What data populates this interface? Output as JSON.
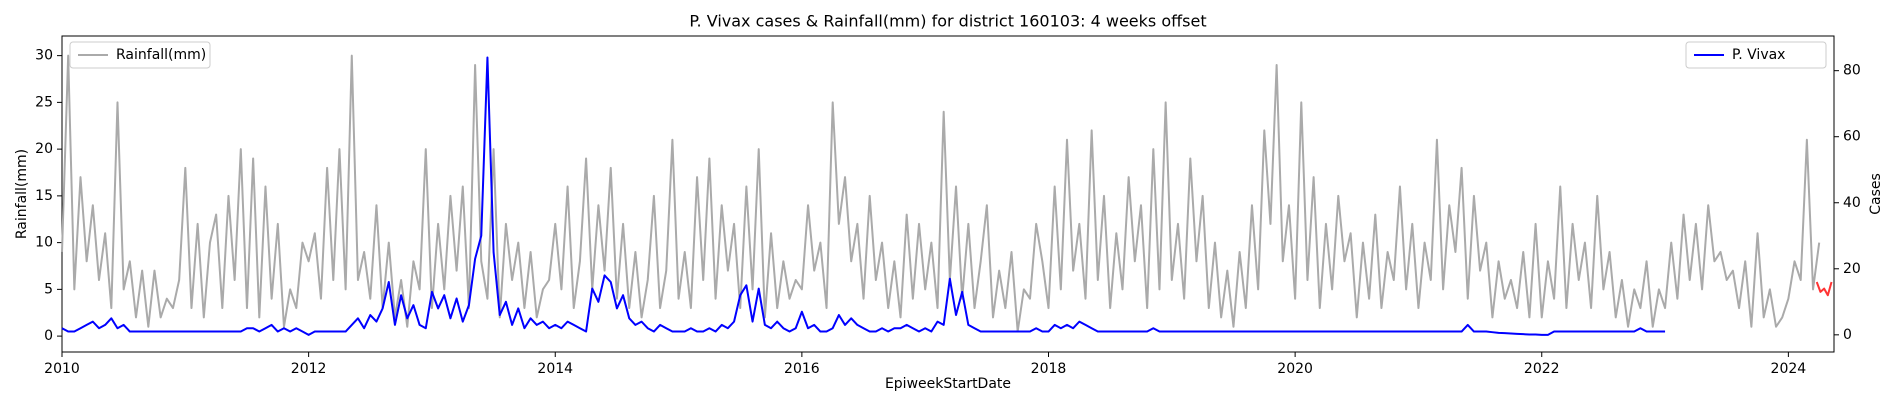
{
  "chart_data": {
    "type": "line",
    "title": "P. Vivax cases & Rainfall(mm) for district 160103: 4 weeks offset",
    "x_label": "EpiweekStartDate",
    "y_label": "Rainfall(mm)",
    "y2_label": "Cases",
    "xlim": [
      2010,
      2024.37
    ],
    "xticks": [
      2010,
      2012,
      2014,
      2016,
      2018,
      2020,
      2022,
      2024
    ],
    "ylim": [
      -1.7,
      32.1
    ],
    "yticks": [
      0,
      5,
      10,
      15,
      20,
      25,
      30
    ],
    "y2lim": [
      -5.2,
      90.5
    ],
    "y2ticks": [
      0,
      20,
      40,
      60,
      80
    ],
    "series": [
      {
        "name": "Rainfall(mm)",
        "color": "#aaaaaa",
        "legend": "upper left",
        "x": [
          2010,
          2010.05,
          2010.1,
          2010.15,
          2010.2,
          2010.25,
          2010.3,
          2010.35,
          2010.4,
          2010.45,
          2010.5,
          2010.55,
          2010.6,
          2010.65,
          2010.7,
          2010.75,
          2010.8,
          2010.85,
          2010.9,
          2010.95,
          2011,
          2011.05,
          2011.1,
          2011.15,
          2011.2,
          2011.25,
          2011.3,
          2011.35,
          2011.4,
          2011.45,
          2011.5,
          2011.55,
          2011.6,
          2011.65,
          2011.7,
          2011.75,
          2011.8,
          2011.85,
          2011.9,
          2011.95,
          2012,
          2012.05,
          2012.1,
          2012.15,
          2012.2,
          2012.25,
          2012.3,
          2012.35,
          2012.4,
          2012.45,
          2012.5,
          2012.55,
          2012.6,
          2012.65,
          2012.7,
          2012.75,
          2012.8,
          2012.85,
          2012.9,
          2012.95,
          2013,
          2013.05,
          2013.1,
          2013.15,
          2013.2,
          2013.25,
          2013.3,
          2013.35,
          2013.4,
          2013.45,
          2013.5,
          2013.55,
          2013.6,
          2013.65,
          2013.7,
          2013.75,
          2013.8,
          2013.85,
          2013.9,
          2013.95,
          2014,
          2014.05,
          2014.1,
          2014.15,
          2014.2,
          2014.25,
          2014.3,
          2014.35,
          2014.4,
          2014.45,
          2014.5,
          2014.55,
          2014.6,
          2014.65,
          2014.7,
          2014.75,
          2014.8,
          2014.85,
          2014.9,
          2014.95,
          2015,
          2015.05,
          2015.1,
          2015.15,
          2015.2,
          2015.25,
          2015.3,
          2015.35,
          2015.4,
          2015.45,
          2015.5,
          2015.55,
          2015.6,
          2015.65,
          2015.7,
          2015.75,
          2015.8,
          2015.85,
          2015.9,
          2015.95,
          2016,
          2016.05,
          2016.1,
          2016.15,
          2016.2,
          2016.25,
          2016.3,
          2016.35,
          2016.4,
          2016.45,
          2016.5,
          2016.55,
          2016.6,
          2016.65,
          2016.7,
          2016.75,
          2016.8,
          2016.85,
          2016.9,
          2016.95,
          2017,
          2017.05,
          2017.1,
          2017.15,
          2017.2,
          2017.25,
          2017.3,
          2017.35,
          2017.4,
          2017.45,
          2017.5,
          2017.55,
          2017.6,
          2017.65,
          2017.7,
          2017.75,
          2017.8,
          2017.85,
          2017.9,
          2017.95,
          2018,
          2018.05,
          2018.1,
          2018.15,
          2018.2,
          2018.25,
          2018.3,
          2018.35,
          2018.4,
          2018.45,
          2018.5,
          2018.55,
          2018.6,
          2018.65,
          2018.7,
          2018.75,
          2018.8,
          2018.85,
          2018.9,
          2018.95,
          2019,
          2019.05,
          2019.1,
          2019.15,
          2019.2,
          2019.25,
          2019.3,
          2019.35,
          2019.4,
          2019.45,
          2019.5,
          2019.55,
          2019.6,
          2019.65,
          2019.7,
          2019.75,
          2019.8,
          2019.85,
          2019.9,
          2019.95,
          2020,
          2020.05,
          2020.1,
          2020.15,
          2020.2,
          2020.25,
          2020.3,
          2020.35,
          2020.4,
          2020.45,
          2020.5,
          2020.55,
          2020.6,
          2020.65,
          2020.7,
          2020.75,
          2020.8,
          2020.85,
          2020.9,
          2020.95,
          2021,
          2021.05,
          2021.1,
          2021.15,
          2021.2,
          2021.25,
          2021.3,
          2021.35,
          2021.4,
          2021.45,
          2021.5,
          2021.55,
          2021.6,
          2021.65,
          2021.7,
          2021.75,
          2021.8,
          2021.85,
          2021.9,
          2021.95,
          2022,
          2022.05,
          2022.1,
          2022.15,
          2022.2,
          2022.25,
          2022.3,
          2022.35,
          2022.4,
          2022.45,
          2022.5,
          2022.55,
          2022.6,
          2022.65,
          2022.7,
          2022.75,
          2022.8,
          2022.85,
          2022.9,
          2022.95,
          2023,
          2023.05,
          2023.1,
          2023.15,
          2023.2,
          2023.25,
          2023.3,
          2023.35,
          2023.4,
          2023.45,
          2023.5,
          2023.55,
          2023.6,
          2023.65,
          2023.7,
          2023.75,
          2023.8,
          2023.85,
          2023.9,
          2023.95,
          2024,
          2024.05,
          2024.1,
          2024.15,
          2024.2,
          2024.25
        ],
        "values": [
          9,
          30,
          5,
          17,
          8,
          14,
          6,
          11,
          3,
          25,
          5,
          8,
          2,
          7,
          1,
          7,
          2,
          4,
          3,
          6,
          18,
          3,
          12,
          2,
          10,
          13,
          3,
          15,
          6,
          20,
          3,
          19,
          2,
          16,
          4,
          12,
          1,
          5,
          3,
          10,
          8,
          11,
          4,
          18,
          6,
          20,
          5,
          30,
          6,
          9,
          4,
          14,
          3,
          10,
          2,
          6,
          1,
          8,
          5,
          20,
          3,
          12,
          5,
          15,
          7,
          16,
          3,
          29,
          8,
          4,
          20,
          2,
          12,
          6,
          10,
          3,
          9,
          2,
          5,
          6,
          12,
          5,
          16,
          3,
          8,
          19,
          5,
          14,
          7,
          18,
          4,
          12,
          3,
          9,
          2,
          6,
          15,
          3,
          7,
          21,
          4,
          9,
          3,
          17,
          6,
          19,
          4,
          14,
          7,
          12,
          3,
          16,
          5,
          20,
          2,
          11,
          3,
          8,
          4,
          6,
          5,
          14,
          7,
          10,
          3,
          25,
          12,
          17,
          8,
          12,
          4,
          15,
          6,
          10,
          3,
          8,
          2,
          13,
          4,
          12,
          5,
          10,
          3,
          24,
          6,
          16,
          4,
          12,
          3,
          8,
          14,
          2,
          7,
          3,
          9,
          0.5,
          5,
          4,
          12,
          8,
          3,
          16,
          5,
          21,
          7,
          12,
          4,
          22,
          6,
          15,
          3,
          11,
          5,
          17,
          8,
          14,
          3,
          20,
          5,
          25,
          6,
          12,
          4,
          19,
          8,
          15,
          3,
          10,
          2,
          7,
          1,
          9,
          3,
          14,
          5,
          22,
          12,
          29,
          8,
          14,
          4,
          25,
          6,
          17,
          3,
          12,
          5,
          15,
          8,
          11,
          2,
          10,
          4,
          13,
          3,
          9,
          6,
          16,
          5,
          12,
          3,
          10,
          6,
          21,
          5,
          14,
          9,
          18,
          4,
          15,
          7,
          10,
          2,
          8,
          4,
          6,
          3,
          9,
          2,
          12,
          2,
          8,
          4,
          16,
          3,
          12,
          6,
          10,
          3,
          15,
          5,
          9,
          2,
          6,
          1,
          5,
          3,
          8,
          1,
          5,
          3,
          10,
          4,
          13,
          6,
          12,
          5,
          14,
          8,
          9,
          6,
          7,
          3,
          8,
          1,
          11,
          2,
          5,
          1,
          2,
          4,
          8,
          6,
          21,
          5,
          10
        ]
      },
      {
        "name": "P. Vivax",
        "color": "#0000ff",
        "axis": "y2",
        "legend": "upper right",
        "x": [
          2010,
          2010.05,
          2010.1,
          2010.15,
          2010.2,
          2010.25,
          2010.3,
          2010.35,
          2010.4,
          2010.45,
          2010.5,
          2010.55,
          2010.6,
          2010.65,
          2010.7,
          2010.75,
          2010.8,
          2010.85,
          2010.9,
          2010.95,
          2011,
          2011.05,
          2011.1,
          2011.15,
          2011.2,
          2011.25,
          2011.3,
          2011.35,
          2011.4,
          2011.45,
          2011.5,
          2011.55,
          2011.6,
          2011.65,
          2011.7,
          2011.75,
          2011.8,
          2011.85,
          2011.9,
          2011.95,
          2012,
          2012.05,
          2012.1,
          2012.15,
          2012.2,
          2012.25,
          2012.3,
          2012.35,
          2012.4,
          2012.45,
          2012.5,
          2012.55,
          2012.6,
          2012.65,
          2012.7,
          2012.75,
          2012.8,
          2012.85,
          2012.9,
          2012.95,
          2013,
          2013.05,
          2013.1,
          2013.15,
          2013.2,
          2013.25,
          2013.3,
          2013.35,
          2013.4,
          2013.45,
          2013.5,
          2013.55,
          2013.6,
          2013.65,
          2013.7,
          2013.75,
          2013.8,
          2013.85,
          2013.9,
          2013.95,
          2014,
          2014.05,
          2014.1,
          2014.15,
          2014.2,
          2014.25,
          2014.3,
          2014.35,
          2014.4,
          2014.45,
          2014.5,
          2014.55,
          2014.6,
          2014.65,
          2014.7,
          2014.75,
          2014.8,
          2014.85,
          2014.9,
          2014.95,
          2015,
          2015.05,
          2015.1,
          2015.15,
          2015.2,
          2015.25,
          2015.3,
          2015.35,
          2015.4,
          2015.45,
          2015.5,
          2015.55,
          2015.6,
          2015.65,
          2015.7,
          2015.75,
          2015.8,
          2015.85,
          2015.9,
          2015.95,
          2016,
          2016.05,
          2016.1,
          2016.15,
          2016.2,
          2016.25,
          2016.3,
          2016.35,
          2016.4,
          2016.45,
          2016.5,
          2016.55,
          2016.6,
          2016.65,
          2016.7,
          2016.75,
          2016.8,
          2016.85,
          2016.9,
          2016.95,
          2017,
          2017.05,
          2017.1,
          2017.15,
          2017.2,
          2017.25,
          2017.3,
          2017.35,
          2017.4,
          2017.45,
          2017.5,
          2017.55,
          2017.6,
          2017.65,
          2017.7,
          2017.75,
          2017.8,
          2017.85,
          2017.9,
          2017.95,
          2018,
          2018.05,
          2018.1,
          2018.15,
          2018.2,
          2018.25,
          2018.3,
          2018.35,
          2018.4,
          2018.45,
          2018.5,
          2018.55,
          2018.6,
          2018.65,
          2018.7,
          2018.75,
          2018.8,
          2018.85,
          2018.9,
          2018.95,
          2019,
          2019.05,
          2019.1,
          2019.15,
          2019.2,
          2019.25,
          2019.3,
          2019.35,
          2019.4,
          2019.45,
          2019.5,
          2019.55,
          2019.6,
          2019.65,
          2019.7,
          2019.75,
          2019.8,
          2019.85,
          2019.9,
          2019.95,
          2020,
          2020.05,
          2020.1,
          2020.15,
          2020.2,
          2020.25,
          2020.3,
          2020.35,
          2020.4,
          2020.45,
          2020.5,
          2020.55,
          2020.6,
          2020.65,
          2020.7,
          2020.75,
          2020.8,
          2020.85,
          2020.9,
          2020.95,
          2021,
          2021.05,
          2021.1,
          2021.15,
          2021.2,
          2021.25,
          2021.3,
          2021.35,
          2021.4,
          2021.45,
          2021.5,
          2021.55,
          2021.6,
          2021.65,
          2021.7,
          2021.75,
          2021.8,
          2021.85,
          2021.9,
          2021.95,
          2022,
          2022.05,
          2022.1,
          2022.15,
          2022.2,
          2022.25,
          2022.3,
          2022.35,
          2022.4,
          2022.45,
          2022.5,
          2022.55,
          2022.6,
          2022.65,
          2022.7,
          2022.75,
          2022.8,
          2022.85,
          2022.9,
          2022.95,
          2023
        ],
        "values": [
          2,
          1,
          1,
          2,
          3,
          4,
          2,
          3,
          5,
          2,
          3,
          1,
          1,
          1,
          1,
          1,
          1,
          1,
          1,
          1,
          1,
          1,
          1,
          1,
          1,
          1,
          1,
          1,
          1,
          1,
          2,
          2,
          1,
          2,
          3,
          1,
          2,
          1,
          2,
          1,
          0,
          1,
          1,
          1,
          1,
          1,
          1,
          3,
          5,
          2,
          6,
          4,
          8,
          16,
          3,
          12,
          5,
          9,
          3,
          2,
          13,
          8,
          12,
          5,
          11,
          4,
          9,
          23,
          30,
          84,
          25,
          6,
          10,
          3,
          8,
          2,
          5,
          3,
          4,
          2,
          3,
          2,
          4,
          3,
          2,
          1,
          14,
          10,
          18,
          16,
          8,
          12,
          5,
          3,
          4,
          2,
          1,
          3,
          2,
          1,
          1,
          1,
          2,
          1,
          1,
          2,
          1,
          3,
          2,
          4,
          12,
          15,
          4,
          14,
          3,
          2,
          4,
          2,
          1,
          2,
          7,
          2,
          3,
          1,
          1,
          2,
          6,
          3,
          5,
          3,
          2,
          1,
          1,
          2,
          1,
          2,
          2,
          3,
          2,
          1,
          2,
          1,
          4,
          3,
          17,
          6,
          13,
          3,
          2,
          1,
          1,
          1,
          1,
          1,
          1,
          1,
          1,
          1,
          2,
          1,
          1,
          3,
          2,
          3,
          2,
          4,
          3,
          2,
          1,
          1,
          1,
          1,
          1,
          1,
          1,
          1,
          1,
          2,
          1,
          1,
          1,
          1,
          1,
          1,
          1,
          1,
          1,
          1,
          1,
          1,
          1,
          1,
          1,
          1,
          1,
          1,
          1,
          1,
          1,
          1,
          1,
          1,
          1,
          1,
          1,
          1,
          1,
          1,
          1,
          1,
          1,
          1,
          1,
          1,
          1,
          1,
          1,
          1,
          1,
          1,
          1,
          1,
          1,
          1,
          1,
          1,
          1,
          1,
          3,
          1,
          1,
          1,
          0.8,
          0.6,
          0.5,
          0.4,
          0.3,
          0.2,
          0.1,
          0.1,
          0,
          0,
          1,
          1,
          1,
          1,
          1,
          1,
          1,
          1,
          1,
          1,
          1,
          1,
          1,
          1,
          2,
          1,
          1,
          1,
          1
        ]
      },
      {
        "color": "#ff3333",
        "axis": "y2",
        "x": [
          2024.23,
          2024.26,
          2024.29,
          2024.32,
          2024.35
        ],
        "values": [
          16,
          13,
          14,
          12,
          16
        ]
      }
    ]
  }
}
